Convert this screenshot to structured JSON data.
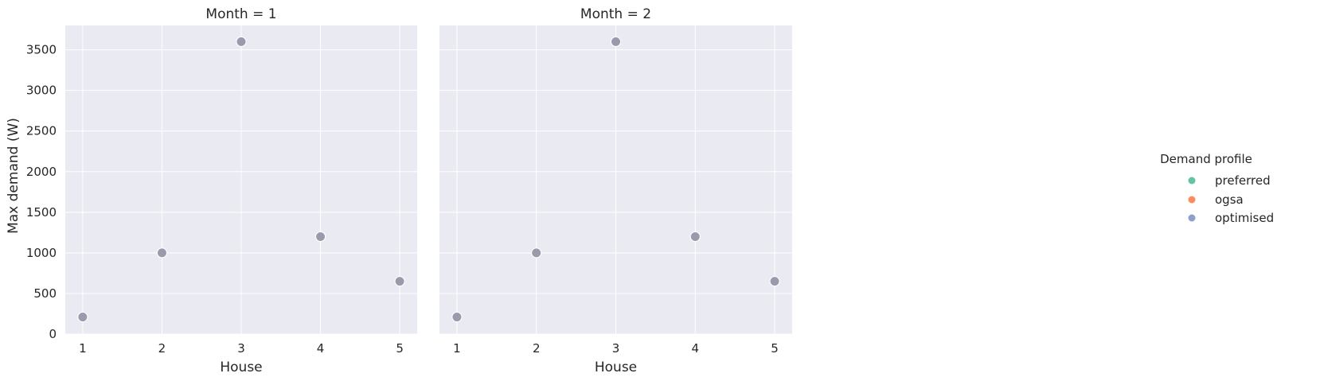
{
  "chart_data": [
    {
      "type": "scatter",
      "title": "Month = 1",
      "xlabel": "House",
      "ylabel": "Max demand (W)",
      "x": [
        1,
        2,
        3,
        4,
        5
      ],
      "xticks": [
        "1",
        "2",
        "3",
        "4",
        "5"
      ],
      "yticks": [
        "0",
        "500",
        "1000",
        "1500",
        "2000",
        "2500",
        "3000",
        "3500"
      ],
      "xlim": [
        0.78,
        5.22
      ],
      "ylim": [
        0,
        3800
      ],
      "grid": true,
      "series": [
        {
          "name": "preferred",
          "values": [
            210,
            1000,
            3600,
            1200,
            650
          ]
        },
        {
          "name": "ogsa",
          "values": [
            210,
            1000,
            3600,
            1200,
            650
          ]
        },
        {
          "name": "optimised",
          "values": [
            210,
            1000,
            3600,
            1200,
            650
          ]
        }
      ]
    },
    {
      "type": "scatter",
      "title": "Month = 2",
      "xlabel": "House",
      "ylabel": "",
      "x": [
        1,
        2,
        3,
        4,
        5
      ],
      "xticks": [
        "1",
        "2",
        "3",
        "4",
        "5"
      ],
      "yticks": [],
      "xlim": [
        0.78,
        5.22
      ],
      "ylim": [
        0,
        3800
      ],
      "grid": true,
      "series": [
        {
          "name": "preferred",
          "values": [
            210,
            1000,
            3600,
            1200,
            650
          ]
        },
        {
          "name": "ogsa",
          "values": [
            210,
            1000,
            3600,
            1200,
            650
          ]
        },
        {
          "name": "optimised",
          "values": [
            210,
            1000,
            3600,
            1200,
            650
          ]
        }
      ]
    }
  ],
  "legend": {
    "title": "Demand profile",
    "placement": "right",
    "items": [
      {
        "label": "preferred",
        "color": "#66c2a5"
      },
      {
        "label": "ogsa",
        "color": "#fc8d62"
      },
      {
        "label": "optimised",
        "color": "#8da0cb"
      }
    ]
  },
  "colors": {
    "panel_background": "#eaeaf2",
    "grid": "#ffffff",
    "marker_overlap": "#9b9aad",
    "marker_edge": "#ffffff"
  }
}
